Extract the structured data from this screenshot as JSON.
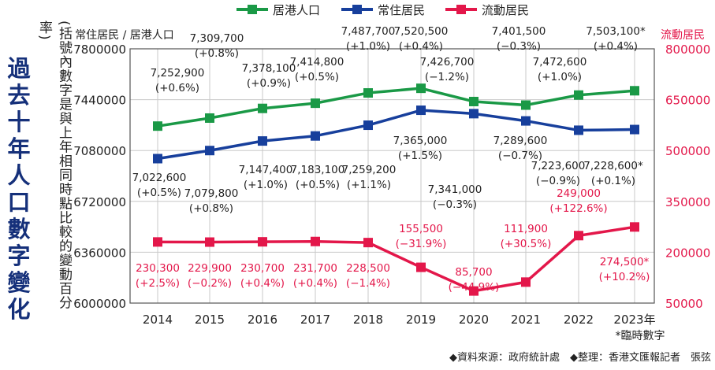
{
  "side_title": "過去十年人口數字變化",
  "side_note": "(括號內數字是與上年相同時點比較的變動百分率)",
  "colors": {
    "green": "#1a9946",
    "blue": "#173f9c",
    "red": "#e3174a",
    "grid": "#c8c8c8",
    "text": "#222222"
  },
  "chart_data": {
    "type": "line",
    "x": [
      "2014",
      "2015",
      "2016",
      "2017",
      "2018",
      "2019",
      "2020",
      "2021",
      "2022",
      "2023年"
    ],
    "left_axis": {
      "label": "常住居民 / 居港人口",
      "ticks": [
        "7800000",
        "7440000",
        "7080000",
        "6720000",
        "6360000",
        "6000000"
      ],
      "ylim": [
        6000000,
        7800000
      ]
    },
    "right_axis": {
      "label": "流動居民",
      "ticks": [
        "800000",
        "650000",
        "500000",
        "350000",
        "200000",
        "50000"
      ],
      "ylim": [
        50000,
        800000
      ]
    },
    "legend": [
      "居港人口",
      "常住居民",
      "流動居民"
    ],
    "series": [
      {
        "name": "居港人口",
        "axis": "left",
        "color": "#1a9946",
        "marker": "square",
        "values": [
          7252900,
          7309700,
          7378100,
          7414800,
          7487700,
          7520500,
          7426700,
          7401500,
          7472600,
          7503100
        ],
        "labels": [
          "7,252,900",
          "7,309,700",
          "7,378,100",
          "7,414,800",
          "7,487,700",
          "7,520,500",
          "7,426,700",
          "7,401,500",
          "7,472,600",
          "7,503,100*"
        ],
        "changes": [
          "(+0.6%)",
          "(+0.8%)",
          "(+0.9%)",
          "(+0.5%)",
          "(+1.0%)",
          "(+0.4%)",
          "(−1.2%)",
          "(−0.3%)",
          "(+1.0%)",
          "(+0.4%)"
        ]
      },
      {
        "name": "常住居民",
        "axis": "left",
        "color": "#173f9c",
        "marker": "square",
        "values": [
          7022600,
          7079800,
          7147400,
          7183100,
          7259200,
          7365000,
          7341000,
          7289600,
          7223600,
          7228600
        ],
        "labels": [
          "7,022,600",
          "7,079,800",
          "7,147,400",
          "7,183,100",
          "7,259,200",
          "7,365,000",
          "7,341,000",
          "7,289,600",
          "7,223,600",
          "7,228,600*"
        ],
        "changes": [
          "(+0.5%)",
          "(+0.8%)",
          "(+1.0%)",
          "(+0.5%)",
          "(+1.1%)",
          "(+1.5%)",
          "(−0.3%)",
          "(−0.7%)",
          "(−0.9%)",
          "(+0.1%)"
        ]
      },
      {
        "name": "流動居民",
        "axis": "right",
        "color": "#e3174a",
        "marker": "square",
        "values": [
          230300,
          229900,
          230700,
          231700,
          228500,
          155500,
          85700,
          111900,
          249000,
          274500
        ],
        "labels": [
          "230,300",
          "229,900",
          "230,700",
          "231,700",
          "228,500",
          "155,500",
          "85,700",
          "111,900",
          "249,000",
          "274,500*"
        ],
        "changes": [
          "(+2.5%)",
          "(−0.2%)",
          "(+0.4%)",
          "(+0.4%)",
          "(−1.4%)",
          "(−31.9%)",
          "(−44.9%)",
          "(+30.5%)",
          "(+122.6%)",
          "(+10.2%)"
        ]
      }
    ],
    "footnote": "*臨時數字",
    "grid": true
  },
  "source_note": "◆資料來源：政府統計處　◆整理：香港文匯報記者　張弦"
}
